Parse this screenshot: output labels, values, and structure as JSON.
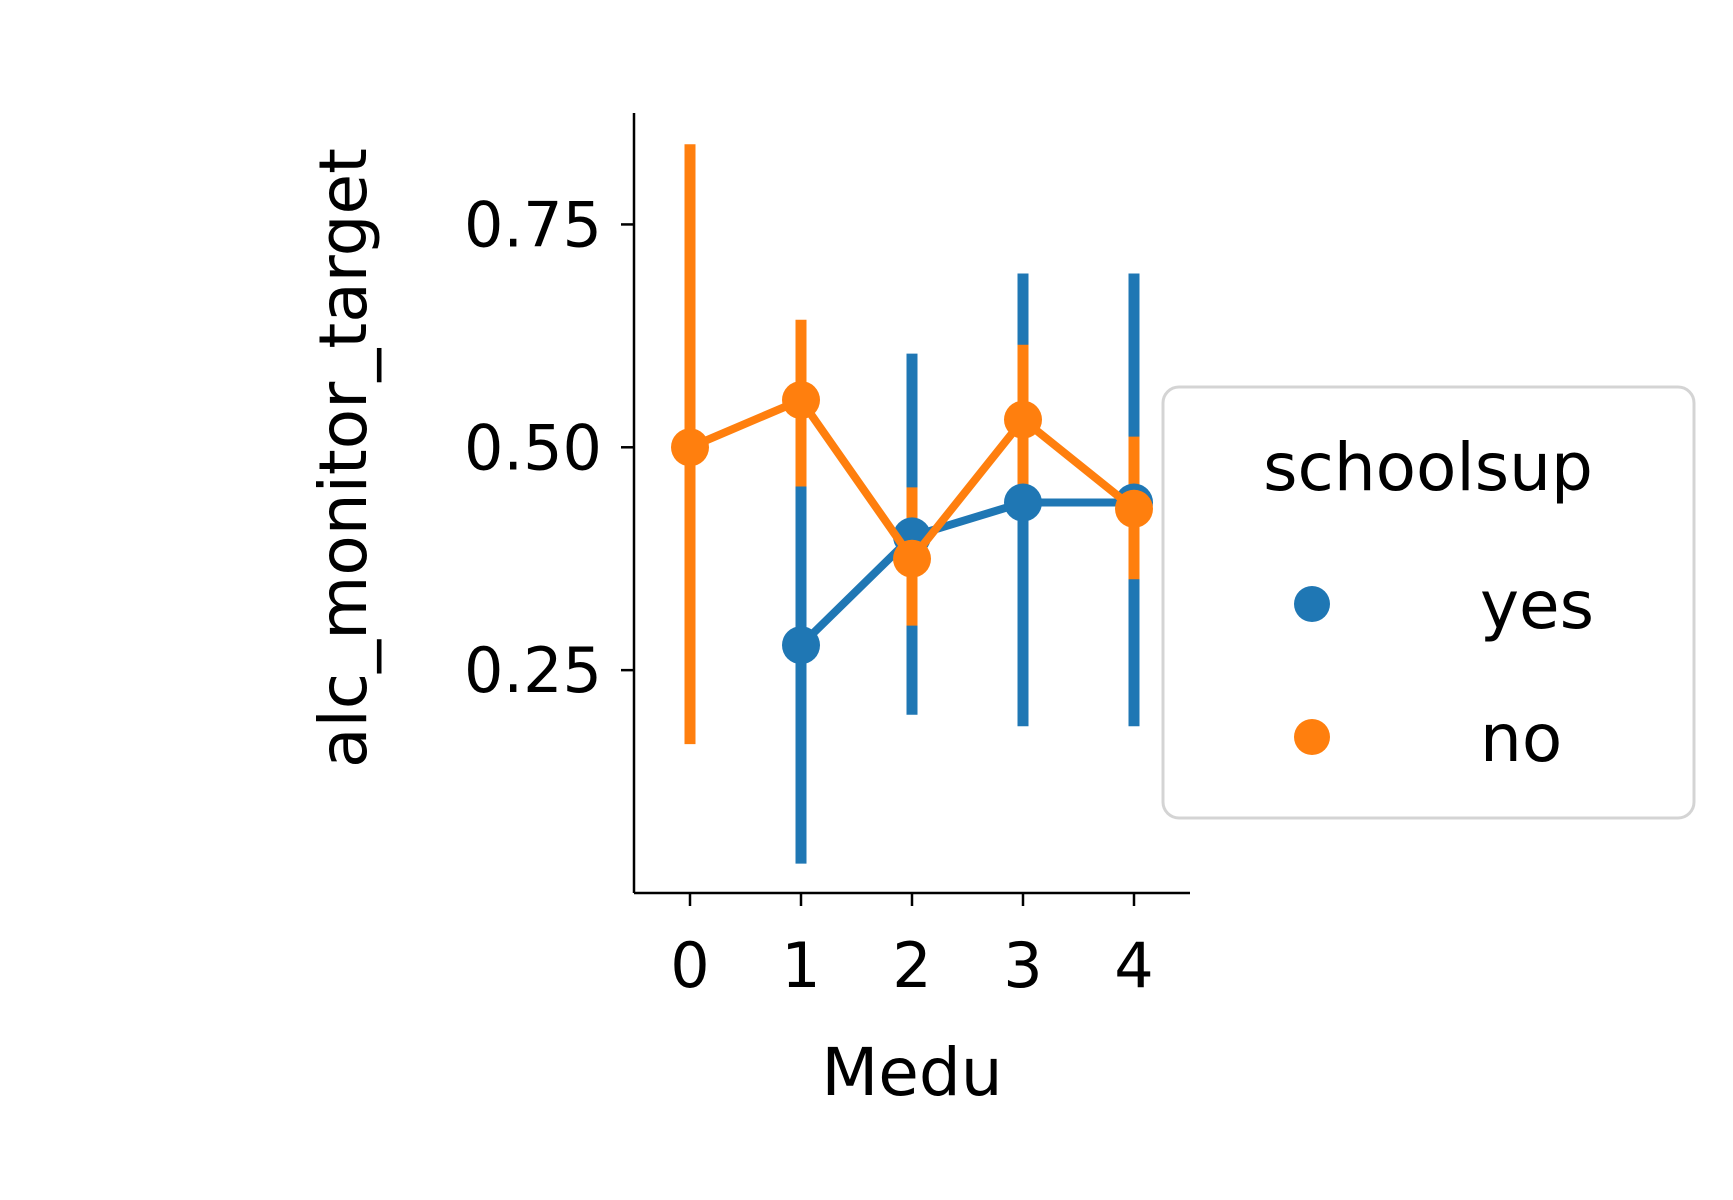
{
  "chart_data": {
    "type": "line",
    "xlabel": "Medu",
    "ylabel": "alc_monitor_target",
    "x_categories": [
      "0",
      "1",
      "2",
      "3",
      "4"
    ],
    "y_ticks": [
      "0.25",
      "0.50",
      "0.75"
    ],
    "ylim": [
      0.0,
      0.875
    ],
    "legend": {
      "title": "schoolsup",
      "position": "right"
    },
    "series": [
      {
        "name": "yes",
        "color": "#1f77b4",
        "points": [
          {
            "x": "1",
            "y": 0.278,
            "ci": [
              0.033,
              0.456
            ]
          },
          {
            "x": "2",
            "y": 0.4,
            "ci": [
              0.2,
              0.605
            ]
          },
          {
            "x": "3",
            "y": 0.438,
            "ci": [
              0.187,
              0.695
            ]
          },
          {
            "x": "4",
            "y": 0.438,
            "ci": [
              0.187,
              0.695
            ]
          }
        ]
      },
      {
        "name": "no",
        "color": "#ff7f0e",
        "points": [
          {
            "x": "0",
            "y": 0.5,
            "ci": [
              0.167,
              0.84
            ]
          },
          {
            "x": "1",
            "y": 0.553,
            "ci": [
              0.456,
              0.643
            ]
          },
          {
            "x": "2",
            "y": 0.375,
            "ci": [
              0.3,
              0.455
            ]
          },
          {
            "x": "3",
            "y": 0.531,
            "ci": [
              0.45,
              0.615
            ]
          },
          {
            "x": "4",
            "y": 0.431,
            "ci": [
              0.352,
              0.512
            ]
          }
        ]
      }
    ]
  }
}
